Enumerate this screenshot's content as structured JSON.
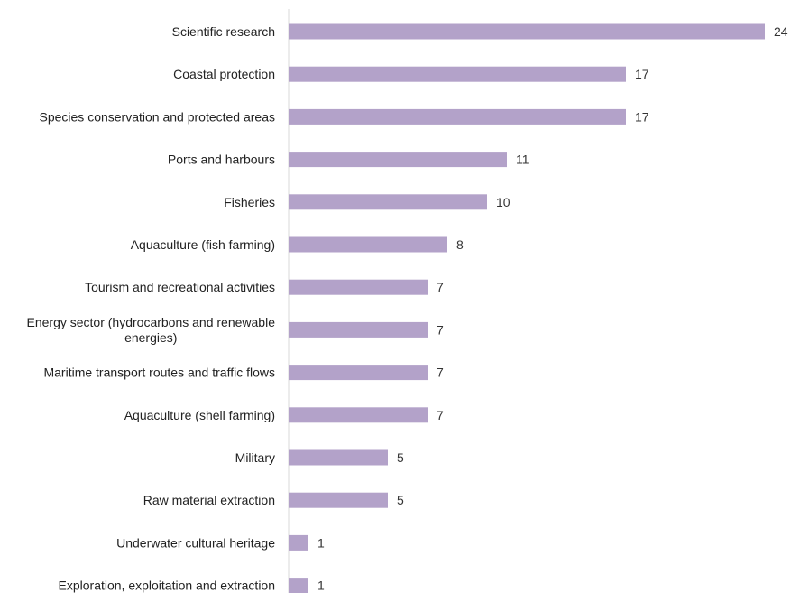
{
  "chart_data": {
    "type": "bar",
    "orientation": "horizontal",
    "categories": [
      "Scientific research",
      "Coastal protection",
      "Species conservation and protected areas",
      "Ports and harbours",
      "Fisheries",
      "Aquaculture (fish farming)",
      "Tourism and recreational activities",
      "Energy sector (hydrocarbons and renewable energies)",
      "Maritime transport routes and traffic flows",
      "Aquaculture (shell farming)",
      "Military",
      "Raw material extraction",
      "Underwater cultural heritage",
      "Exploration, exploitation and extraction"
    ],
    "values": [
      24,
      17,
      17,
      11,
      10,
      8,
      7,
      7,
      7,
      7,
      5,
      5,
      1,
      1
    ],
    "xlim": [
      0,
      24
    ],
    "grid": false,
    "legend": "none",
    "bar_color": "#b3a2c9",
    "axis_color": "#d9d9d9"
  }
}
